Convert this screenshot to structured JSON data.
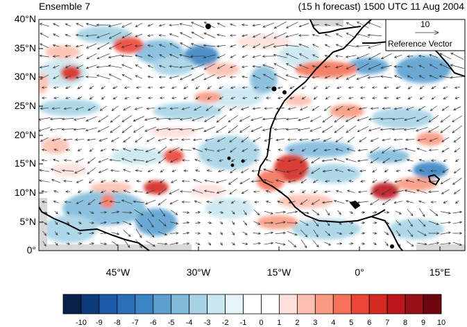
{
  "titles": {
    "left": "Ensemble 7",
    "right": "(15 h forecast) 1500 UTC 11 Aug 2004"
  },
  "map": {
    "lat_labels": [
      "40°N",
      "35°N",
      "30°N",
      "25°N",
      "20°N",
      "15°N",
      "10°N",
      "5°N",
      "0°"
    ],
    "lon_labels": [
      "45°W",
      "30°W",
      "15°W",
      "0°",
      "15°E"
    ],
    "reference_vector": {
      "magnitude": "10",
      "label": "Reference Vector"
    }
  },
  "colorbar": {
    "labels": [
      "-10",
      "-9",
      "-8",
      "-7",
      "-6",
      "-5",
      "-4",
      "-3",
      "-2",
      "-1",
      "0",
      "1",
      "2",
      "3",
      "4",
      "5",
      "6",
      "7",
      "8",
      "9",
      "10"
    ],
    "colors": [
      "#08214a",
      "#0d3a78",
      "#1a5aa6",
      "#2a70b8",
      "#3b85c3",
      "#5ba0d0",
      "#80bbdc",
      "#a6d3e6",
      "#c9e7f0",
      "#e6f4f8",
      "#ffffff",
      "#ffffff",
      "#fde0dc",
      "#fcbfb0",
      "#f99a82",
      "#f57359",
      "#ea4536",
      "#d42a22",
      "#bb161b",
      "#981018",
      "#6e0610"
    ]
  }
}
